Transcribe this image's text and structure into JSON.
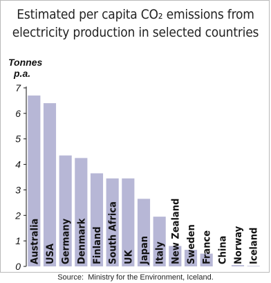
{
  "chart_data": {
    "type": "bar",
    "title_lines": [
      "Estimated per capita CO₂ emissions from",
      "electricity production in selected countries"
    ],
    "ylabel_lines": [
      "Tonnes",
      "p.a."
    ],
    "xlabel": "",
    "ylim": [
      0,
      7
    ],
    "yticks": [
      0,
      1,
      2,
      3,
      4,
      5,
      6,
      7
    ],
    "categories": [
      "Australia",
      "USA",
      "Germany",
      "Denmark",
      "Finland",
      "South Africa",
      "UK",
      "Japan",
      "Italy",
      "New Zealand",
      "Sweden",
      "France",
      "China",
      "Norway",
      "Iceland"
    ],
    "values": [
      6.7,
      6.4,
      4.35,
      4.25,
      3.65,
      3.45,
      3.45,
      2.65,
      1.95,
      0.8,
      0.65,
      0.5,
      0.0,
      0.05,
      0.02
    ],
    "bar_color": "#b7b7d6",
    "grid": false,
    "source": "Source:  Ministry for the Environment, Iceland."
  }
}
